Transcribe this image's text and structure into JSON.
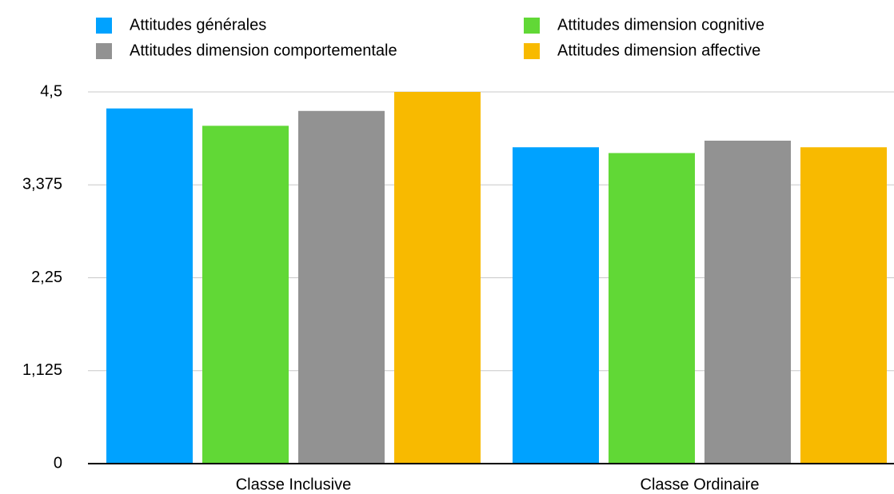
{
  "chart_data": {
    "type": "bar",
    "categories": [
      "Classe Inclusive",
      "Classe Ordinaire"
    ],
    "series": [
      {
        "name": "Attitudes générales",
        "color": "#00a2ff",
        "values": [
          4.3,
          3.83
        ]
      },
      {
        "name": "Attitudes dimension cognitive",
        "color": "#61d836",
        "values": [
          4.09,
          3.76
        ]
      },
      {
        "name": "Attitudes dimension comportementale",
        "color": "#929292",
        "values": [
          4.27,
          3.91
        ]
      },
      {
        "name": "Attitudes dimension affective",
        "color": "#f8ba00",
        "values": [
          4.5,
          3.83
        ]
      }
    ],
    "ylim": [
      0,
      4.5
    ],
    "yticks": [
      0,
      {
        "value": 1.125,
        "label": "1,125"
      },
      {
        "value": 2.25,
        "label": "2,25"
      },
      {
        "value": 3.375,
        "label": "3,375"
      },
      {
        "value": 4.5,
        "label": "4,5"
      }
    ],
    "grid": true,
    "legend": "top"
  }
}
